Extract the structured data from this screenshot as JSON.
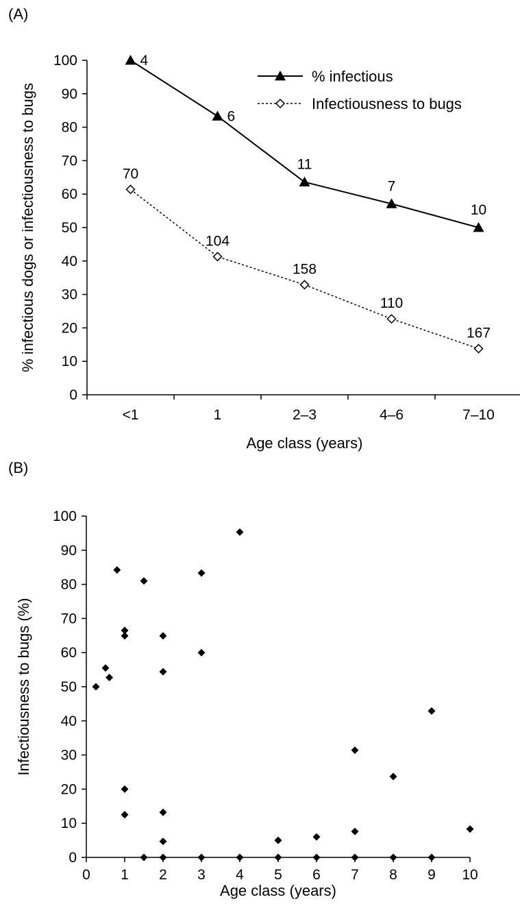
{
  "chart_data": [
    {
      "panel_label": "(A)",
      "type": "line",
      "categories": [
        "<1",
        "1",
        "2–3",
        "4–6",
        "7–10"
      ],
      "xlabel": "Age class (years)",
      "ylabel": "% infectious dogs or infectiousness to bugs",
      "ylim": [
        0,
        100
      ],
      "yticks": [
        0,
        10,
        20,
        30,
        40,
        50,
        60,
        70,
        80,
        90,
        100
      ],
      "grid": false,
      "legend_position": "top-right",
      "series": [
        {
          "name": "% infectious",
          "marker": "filled-triangle",
          "line_style": "solid",
          "values": [
            100,
            83.3,
            63.6,
            57.1,
            50
          ],
          "labels": [
            "4",
            "6",
            "11",
            "7",
            "10"
          ]
        },
        {
          "name": "Infectiousness to bugs",
          "marker": "open-diamond",
          "line_style": "dotted",
          "values": [
            61.4,
            41.3,
            32.9,
            22.7,
            13.8
          ],
          "labels": [
            "70",
            "104",
            "158",
            "110",
            "167"
          ]
        }
      ]
    },
    {
      "panel_label": "(B)",
      "type": "scatter",
      "xlabel": "Age class (years)",
      "ylabel": "Infectiousness to bugs (%)",
      "xlim": [
        0,
        10
      ],
      "ylim": [
        0,
        100
      ],
      "xticks": [
        0,
        1,
        2,
        3,
        4,
        5,
        6,
        7,
        8,
        9,
        10
      ],
      "yticks": [
        0,
        10,
        20,
        30,
        40,
        50,
        60,
        70,
        80,
        90,
        100
      ],
      "grid": false,
      "marker": "filled-diamond",
      "points": [
        {
          "x": 0.25,
          "y": 50
        },
        {
          "x": 0.5,
          "y": 55.5
        },
        {
          "x": 0.6,
          "y": 52.7
        },
        {
          "x": 0.8,
          "y": 84.2
        },
        {
          "x": 1,
          "y": 66.5
        },
        {
          "x": 1,
          "y": 64.9
        },
        {
          "x": 1,
          "y": 20
        },
        {
          "x": 1,
          "y": 12.5
        },
        {
          "x": 1.5,
          "y": 81
        },
        {
          "x": 1.5,
          "y": 0
        },
        {
          "x": 2,
          "y": 64.9
        },
        {
          "x": 2,
          "y": 54.4
        },
        {
          "x": 2,
          "y": 13.2
        },
        {
          "x": 2,
          "y": 4.7
        },
        {
          "x": 2,
          "y": 0
        },
        {
          "x": 3,
          "y": 83.3
        },
        {
          "x": 3,
          "y": 60
        },
        {
          "x": 3,
          "y": 0
        },
        {
          "x": 4,
          "y": 95.3
        },
        {
          "x": 4,
          "y": 0
        },
        {
          "x": 5,
          "y": 5
        },
        {
          "x": 5,
          "y": 0
        },
        {
          "x": 6,
          "y": 6
        },
        {
          "x": 6,
          "y": 0
        },
        {
          "x": 7,
          "y": 31.4
        },
        {
          "x": 7,
          "y": 7.6
        },
        {
          "x": 7,
          "y": 0
        },
        {
          "x": 8,
          "y": 23.7
        },
        {
          "x": 8,
          "y": 0
        },
        {
          "x": 9,
          "y": 42.9
        },
        {
          "x": 9,
          "y": 0
        },
        {
          "x": 10,
          "y": 8.3
        }
      ]
    }
  ]
}
